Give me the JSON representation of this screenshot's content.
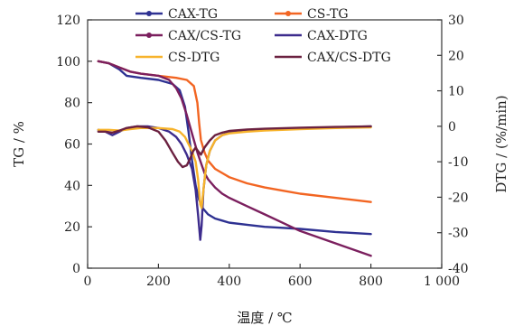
{
  "chart_data": {
    "type": "line",
    "xlabel": "温度 / ℃",
    "ylabel_left": "TG / %",
    "ylabel_right": "DTG / (%/min)",
    "xlim": [
      0,
      1000
    ],
    "ylim_left": [
      0,
      120
    ],
    "ylim_right": [
      -40,
      30
    ],
    "x_ticks": [
      0,
      200,
      400,
      600,
      800,
      1000
    ],
    "x_tick_labels": [
      "0",
      "200",
      "400",
      "600",
      "800",
      "1 000"
    ],
    "y_left_ticks": [
      0,
      20,
      40,
      60,
      80,
      100,
      120
    ],
    "y_left_tick_labels": [
      "0",
      "20",
      "40",
      "60",
      "80",
      "100",
      "120"
    ],
    "y_right_ticks": [
      -40,
      -30,
      -20,
      -10,
      0,
      10,
      20,
      30
    ],
    "y_right_tick_labels": [
      "-40",
      "-30",
      "-20",
      "-10",
      "0",
      "10",
      "20",
      "30"
    ],
    "grid": false,
    "legend_placement": "top, three rows by two columns",
    "series": [
      {
        "name": "CAX-TG",
        "axis": "left",
        "color": "#2e3192",
        "marker": "circle",
        "x": [
          30,
          60,
          90,
          110,
          150,
          200,
          240,
          260,
          275,
          285,
          295,
          305,
          315,
          325,
          340,
          360,
          380,
          400,
          450,
          500,
          550,
          600,
          700,
          800
        ],
        "y": [
          100,
          99,
          96,
          93,
          92,
          91,
          89,
          86,
          78,
          66,
          52,
          40,
          33,
          29,
          26,
          24,
          23,
          22,
          21,
          20,
          19.5,
          19,
          17.5,
          16.5
        ]
      },
      {
        "name": "CS-TG",
        "axis": "left",
        "color": "#f26522",
        "marker": "circle",
        "x": [
          30,
          60,
          90,
          120,
          150,
          200,
          250,
          280,
          300,
          310,
          315,
          320,
          330,
          340,
          360,
          380,
          400,
          450,
          500,
          550,
          600,
          700,
          800
        ],
        "y": [
          100,
          99,
          97,
          95,
          94,
          93,
          92,
          91,
          88,
          80,
          70,
          62,
          56,
          52,
          48,
          46,
          44,
          41,
          39,
          37.5,
          36,
          34,
          32
        ]
      },
      {
        "name": "CAX/CS-TG",
        "axis": "left",
        "color": "#7b1f5e",
        "marker": "circle",
        "x": [
          30,
          60,
          90,
          120,
          150,
          200,
          230,
          250,
          265,
          280,
          295,
          310,
          320,
          330,
          340,
          360,
          380,
          400,
          450,
          500,
          550,
          600,
          700,
          800
        ],
        "y": [
          100,
          99,
          97,
          95,
          94,
          93,
          91,
          87,
          82,
          74,
          65,
          56,
          51,
          46,
          43,
          39,
          36,
          34,
          30,
          26,
          22,
          18,
          12,
          6
        ]
      },
      {
        "name": "CAX-DTG",
        "axis": "right",
        "color": "#3d2c8d",
        "marker": "none",
        "x": [
          30,
          50,
          70,
          90,
          110,
          140,
          170,
          200,
          230,
          250,
          265,
          280,
          295,
          305,
          312,
          318,
          322,
          327,
          335,
          345,
          360,
          380,
          400,
          450,
          500,
          600,
          700,
          800
        ],
        "y": [
          -1,
          -1.5,
          -2.5,
          -1.5,
          -0.5,
          0,
          0,
          -0.5,
          -1.5,
          -3,
          -5,
          -8,
          -12,
          -18,
          -25,
          -32,
          -28,
          -18,
          -11,
          -7,
          -4,
          -2.5,
          -1.8,
          -1.2,
          -1,
          -0.5,
          -0.3,
          0
        ]
      },
      {
        "name": "CS-DTG",
        "axis": "right",
        "color": "#f7b32b",
        "marker": "none",
        "x": [
          30,
          60,
          90,
          120,
          150,
          200,
          240,
          260,
          275,
          285,
          295,
          305,
          312,
          318,
          322,
          328,
          335,
          345,
          360,
          380,
          400,
          450,
          500,
          600,
          700,
          800
        ],
        "y": [
          -1,
          -1,
          -1.2,
          -0.8,
          -0.5,
          -0.5,
          -0.8,
          -1.5,
          -3,
          -5,
          -7,
          -10,
          -15,
          -22,
          -23,
          -17,
          -11,
          -7,
          -4,
          -2.5,
          -2,
          -1.5,
          -1.2,
          -0.8,
          -0.5,
          -0.3
        ]
      },
      {
        "name": "CAX/CS-DTG",
        "axis": "right",
        "color": "#6b2140",
        "marker": "none",
        "x": [
          30,
          50,
          70,
          90,
          110,
          140,
          170,
          200,
          220,
          240,
          255,
          268,
          280,
          290,
          298,
          305,
          312,
          320,
          330,
          345,
          360,
          380,
          400,
          450,
          500,
          600,
          700,
          800
        ],
        "y": [
          -1.5,
          -1.5,
          -1.8,
          -1.2,
          -0.5,
          0,
          -0.3,
          -1.5,
          -4,
          -7.5,
          -10,
          -11.5,
          -11,
          -9,
          -7,
          -6,
          -7,
          -8,
          -6,
          -4,
          -2.5,
          -1.8,
          -1.3,
          -0.9,
          -0.7,
          -0.4,
          -0.2,
          0
        ]
      }
    ]
  }
}
